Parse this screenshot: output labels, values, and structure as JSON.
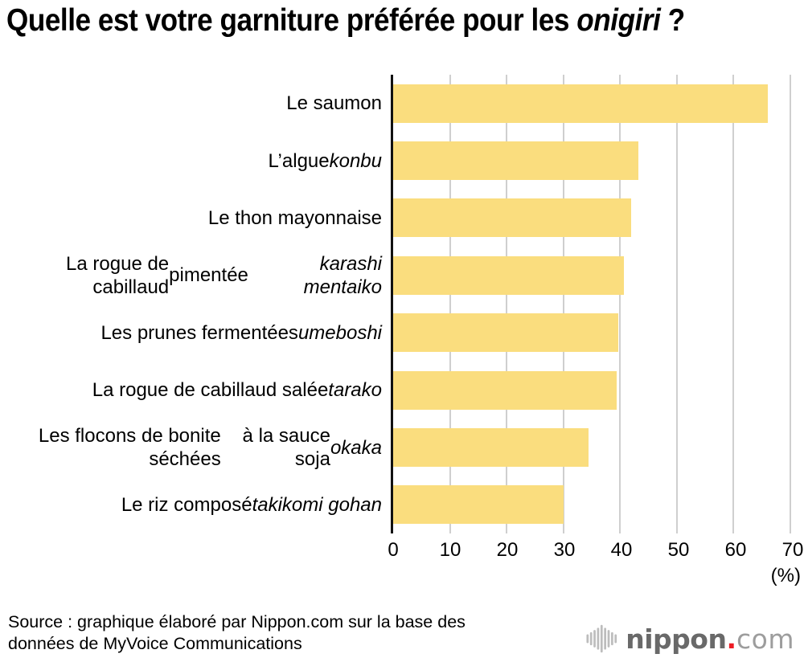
{
  "title": "Quelle est votre garniture préférée pour les onigiri ?",
  "title_segments": [
    {
      "t": "Quelle est votre garniture préférée pour les "
    },
    {
      "t": "onigiri",
      "i": true
    },
    {
      "t": " ?"
    }
  ],
  "chart_data": {
    "type": "bar",
    "orientation": "horizontal",
    "title": "Quelle est votre garniture préférée pour les onigiri ?",
    "categories": [
      "Le saumon",
      "L’algue konbu",
      "Le thon mayonnaise",
      "La rogue de cabillaud pimentée karashi mentaiko",
      "Les prunes fermentées umeboshi",
      "La rogue de cabillaud salée tarako",
      "Les flocons de bonite séchées à la sauce soja okaka",
      "Le riz composé takikomi gohan"
    ],
    "values": [
      66.0,
      43.2,
      41.9,
      40.7,
      39.7,
      39.4,
      34.5,
      30.1
    ],
    "xlim": [
      0,
      70
    ],
    "xticks": [
      "0",
      "10",
      "20",
      "30",
      "40",
      "50",
      "60",
      "70"
    ],
    "x_unit_label": "(%)",
    "grid": true,
    "bar_color": "#FADD7E",
    "gridline_color": "#CFCFCF",
    "rows": [
      {
        "value": 66.0,
        "label_segments": [
          {
            "t": "Le saumon"
          }
        ]
      },
      {
        "value": 43.2,
        "label_segments": [
          {
            "t": "L’algue "
          },
          {
            "t": "konbu",
            "i": true
          }
        ]
      },
      {
        "value": 41.9,
        "label_segments": [
          {
            "t": "Le thon mayonnaise"
          }
        ]
      },
      {
        "value": 40.7,
        "label_segments": [
          {
            "t": "La rogue de cabillaud"
          },
          {
            "br": true
          },
          {
            "t": "pimentée "
          },
          {
            "t": "karashi mentaiko",
            "i": true
          }
        ]
      },
      {
        "value": 39.7,
        "label_segments": [
          {
            "t": "Les prunes fermentées "
          },
          {
            "t": "umeboshi",
            "i": true
          }
        ]
      },
      {
        "value": 39.4,
        "label_segments": [
          {
            "t": "La rogue de cabillaud salée "
          },
          {
            "t": "tarako",
            "i": true
          }
        ]
      },
      {
        "value": 34.5,
        "label_segments": [
          {
            "t": "Les flocons de bonite séchées"
          },
          {
            "br": true
          },
          {
            "t": "à la sauce soja "
          },
          {
            "t": "okaka",
            "i": true
          }
        ]
      },
      {
        "value": 30.1,
        "label_segments": [
          {
            "t": "Le riz composé "
          },
          {
            "t": "takikomi gohan",
            "i": true
          }
        ]
      }
    ]
  },
  "footer": {
    "source_line1": "Source : graphique élaboré par Nippon.com sur la base des",
    "source_line2": "données de MyVoice Communications"
  },
  "logo": {
    "name": "nippon.com",
    "text_main": "nippon",
    "text_dot": ".",
    "text_tld": "com",
    "colors": {
      "main": "#696969",
      "tld": "#9D9D9D",
      "dot": "#ED1C24",
      "icon": "#BDBDBD"
    }
  }
}
